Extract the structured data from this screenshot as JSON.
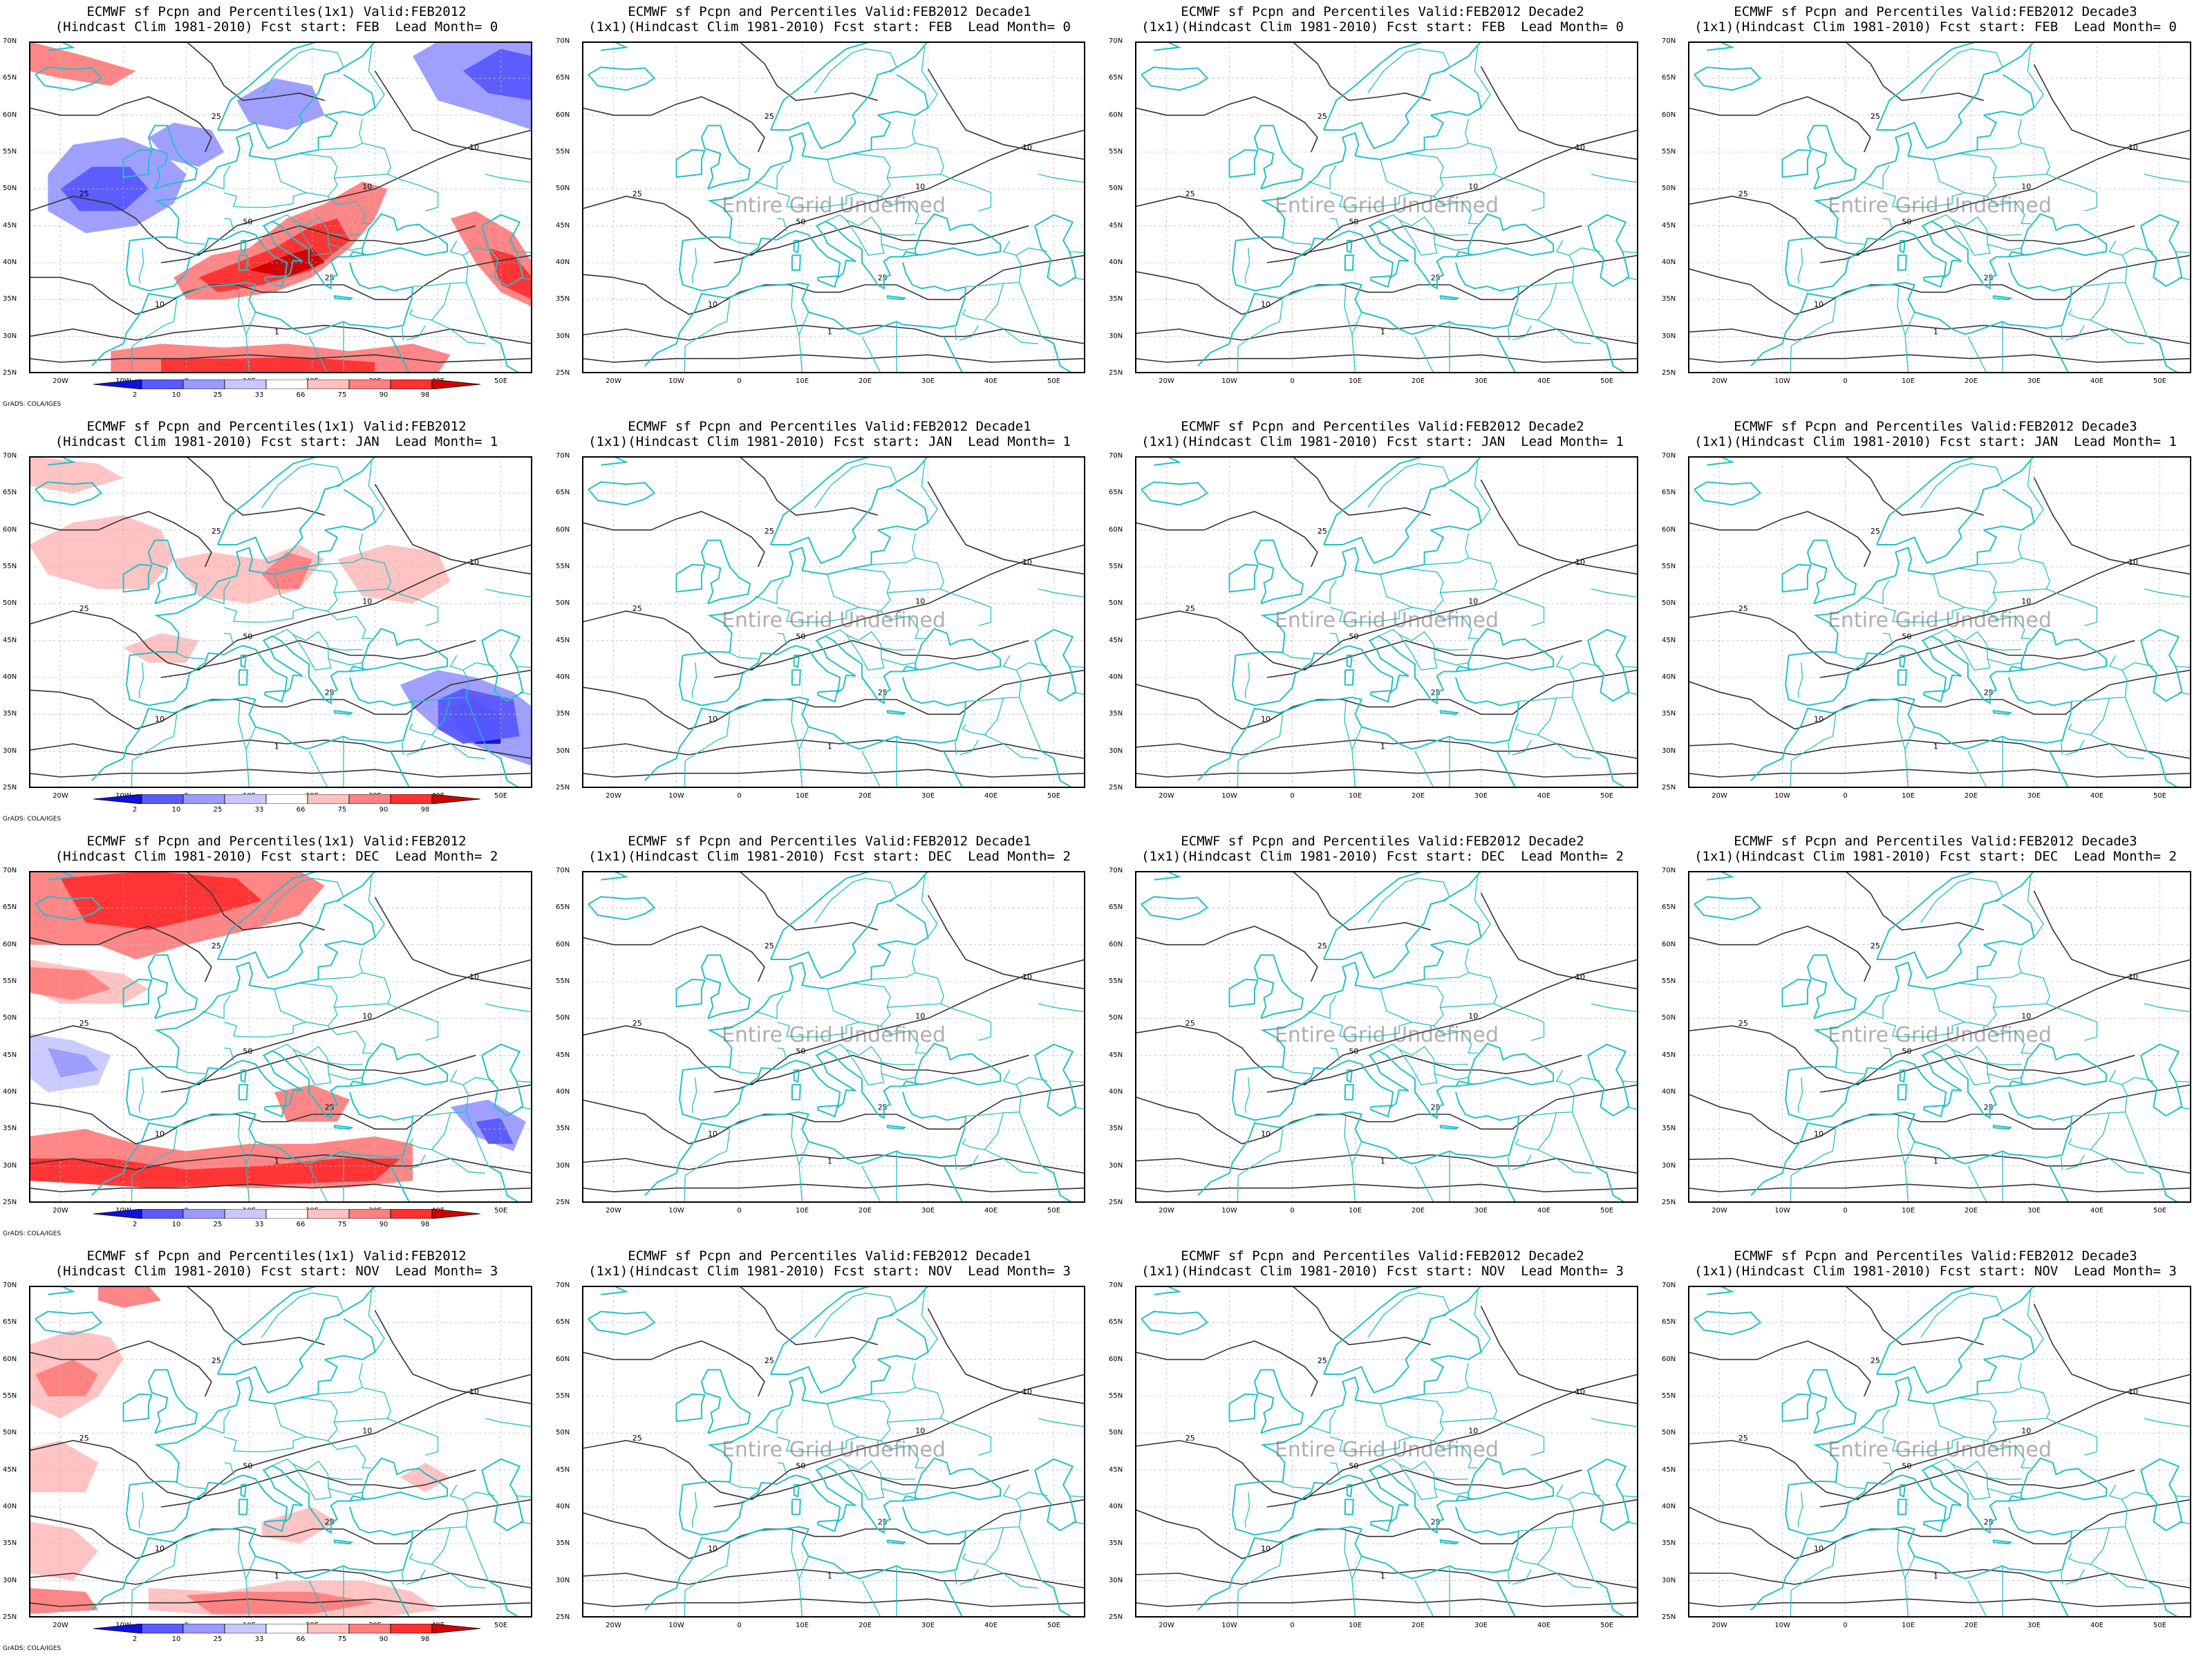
{
  "panels": [
    {
      "title1": "ECMWF sf Pcpn and Percentiles(1x1) Valid:FEB2012",
      "title2": "(Hindcast Clim 1981-2010) Fcst start: FEB  Lead Month= 0",
      "kind": "monthly",
      "anomaly": "feb"
    },
    {
      "title1": "ECMWF sf Pcpn and Percentiles Valid:FEB2012 Decade1",
      "title2": "(1x1)(Hindcast Clim 1981-2010) Fcst start: FEB  Lead Month= 0",
      "kind": "decade",
      "undefined_text": "Entire Grid Undefined"
    },
    {
      "title1": "ECMWF sf Pcpn and Percentiles Valid:FEB2012 Decade2",
      "title2": "(1x1)(Hindcast Clim 1981-2010) Fcst start: FEB  Lead Month= 0",
      "kind": "decade",
      "undefined_text": "Entire Grid Undefined"
    },
    {
      "title1": "ECMWF sf Pcpn and Percentiles Valid:FEB2012 Decade3",
      "title2": "(1x1)(Hindcast Clim 1981-2010) Fcst start: FEB  Lead Month= 0",
      "kind": "decade",
      "undefined_text": "Entire Grid Undefined"
    },
    {
      "title1": "ECMWF sf Pcpn and Percentiles(1x1) Valid:FEB2012",
      "title2": "(Hindcast Clim 1981-2010) Fcst start: JAN  Lead Month= 1",
      "kind": "monthly",
      "anomaly": "jan"
    },
    {
      "title1": "ECMWF sf Pcpn and Percentiles Valid:FEB2012 Decade1",
      "title2": "(1x1)(Hindcast Clim 1981-2010) Fcst start: JAN  Lead Month= 1",
      "kind": "decade",
      "undefined_text": "Entire Grid Undefined"
    },
    {
      "title1": "ECMWF sf Pcpn and Percentiles Valid:FEB2012 Decade2",
      "title2": "(1x1)(Hindcast Clim 1981-2010) Fcst start: JAN  Lead Month= 1",
      "kind": "decade",
      "undefined_text": "Entire Grid Undefined"
    },
    {
      "title1": "ECMWF sf Pcpn and Percentiles Valid:FEB2012 Decade3",
      "title2": "(1x1)(Hindcast Clim 1981-2010) Fcst start: JAN  Lead Month= 1",
      "kind": "decade",
      "undefined_text": "Entire Grid Undefined"
    },
    {
      "title1": "ECMWF sf Pcpn and Percentiles(1x1) Valid:FEB2012",
      "title2": "(Hindcast Clim 1981-2010) Fcst start: DEC  Lead Month= 2",
      "kind": "monthly",
      "anomaly": "dec"
    },
    {
      "title1": "ECMWF sf Pcpn and Percentiles Valid:FEB2012 Decade1",
      "title2": "(1x1)(Hindcast Clim 1981-2010) Fcst start: DEC  Lead Month= 2",
      "kind": "decade",
      "undefined_text": "Entire Grid Undefined"
    },
    {
      "title1": "ECMWF sf Pcpn and Percentiles Valid:FEB2012 Decade2",
      "title2": "(1x1)(Hindcast Clim 1981-2010) Fcst start: DEC  Lead Month= 2",
      "kind": "decade",
      "undefined_text": "Entire Grid Undefined"
    },
    {
      "title1": "ECMWF sf Pcpn and Percentiles Valid:FEB2012 Decade3",
      "title2": "(1x1)(Hindcast Clim 1981-2010) Fcst start: DEC  Lead Month= 2",
      "kind": "decade",
      "undefined_text": "Entire Grid Undefined"
    },
    {
      "title1": "ECMWF sf Pcpn and Percentiles(1x1) Valid:FEB2012",
      "title2": "(Hindcast Clim 1981-2010) Fcst start: NOV  Lead Month= 3",
      "kind": "monthly",
      "anomaly": "nov"
    },
    {
      "title1": "ECMWF sf Pcpn and Percentiles Valid:FEB2012 Decade1",
      "title2": "(1x1)(Hindcast Clim 1981-2010) Fcst start: NOV  Lead Month= 3",
      "kind": "decade",
      "undefined_text": "Entire Grid Undefined"
    },
    {
      "title1": "ECMWF sf Pcpn and Percentiles Valid:FEB2012 Decade2",
      "title2": "(1x1)(Hindcast Clim 1981-2010) Fcst start: NOV  Lead Month= 3",
      "kind": "decade",
      "undefined_text": "Entire Grid Undefined"
    },
    {
      "title1": "ECMWF sf Pcpn and Percentiles Valid:FEB2012 Decade3",
      "title2": "(1x1)(Hindcast Clim 1981-2010) Fcst start: NOV  Lead Month= 3",
      "kind": "decade",
      "undefined_text": "Entire Grid Undefined"
    }
  ],
  "lat_labels": [
    "70N",
    "65N",
    "60N",
    "55N",
    "50N",
    "45N",
    "40N",
    "35N",
    "30N",
    "25N"
  ],
  "lon_labels": [
    "20W",
    "10W",
    "0",
    "10E",
    "20E",
    "30E",
    "40E",
    "50E"
  ],
  "colorbar": {
    "labels": [
      "2",
      "10",
      "25",
      "33",
      "66",
      "75",
      "90",
      "98"
    ],
    "colors": [
      "#1010e0",
      "#5a5aff",
      "#9a9aff",
      "#c8c8ff",
      "#ffffff",
      "#ffc0c0",
      "#ff8080",
      "#ff3030",
      "#d00000"
    ]
  },
  "credit": "GrADS: COLA/IGES",
  "colors": {
    "coast": "#22c0c8",
    "contour": "#333333",
    "grid": "#bbbbbb"
  }
}
